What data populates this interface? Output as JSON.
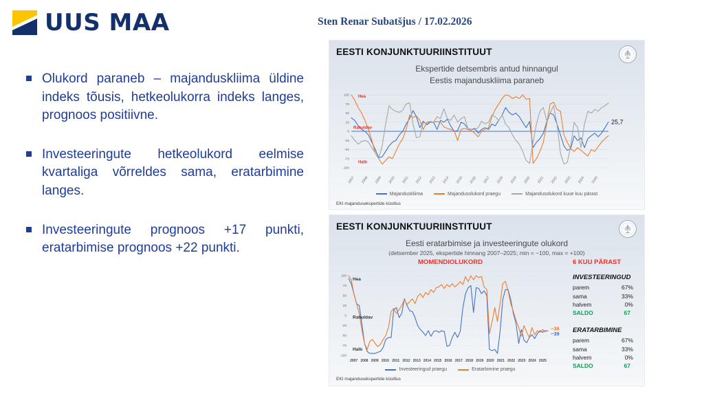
{
  "slide": {
    "logo_text": "UUS MAA",
    "presenter": "Sten Renar Subatšjus / 17.02.2026",
    "bullets": [
      "Olukord paraneb – majanduskliima üldine indeks tõusis, hetkeolukorra indeks langes, prognoos positiivne.",
      "Investeeringute hetkeolukord eelmise kvartaliga võrreldes sama, eratarbimine langes.",
      "Investeeringute prognoos +17 punkti, eratarbimise prognoos +22 punkti."
    ]
  },
  "colors": {
    "bullet_blue": "#1e3d99",
    "logo_navy": "#14306b",
    "logo_yellow": "#fdc500",
    "panel_bg_top": "#dbe2eb",
    "red_label": "#e8332a",
    "green_saldo": "#00a550",
    "line_blue": "#4472c4",
    "line_orange": "#ed7d31",
    "line_gray": "#a6a6a6"
  },
  "panels": [
    {
      "institute": "EESTI KONJUNKTUURIINSTITUUT",
      "title_lines": [
        "Ekspertide detsembris antud hinnangul",
        "Eestis majanduskliima paraneb"
      ],
      "footer": "EKI majandusekspertide küsitlus"
    },
    {
      "institute": "EESTI KONJUNKTUURIINSTITUUT",
      "title": "Eesti eratarbimise ja investeeringute olukord",
      "subtitle": "(detsember 2025, ekspertide hinnang 2007–2025; min = −100, max = +100)",
      "label_left": "MOMENDIOLUKORD",
      "label_right": "6 KUU PÄRAST",
      "stats": [
        {
          "name": "INVESTEERINGUD",
          "rows": [
            [
              "parem",
              "67%"
            ],
            [
              "sama",
              "33%"
            ],
            [
              "halvem",
              "0%"
            ]
          ],
          "saldo_label": "SALDO",
          "saldo_value": "67"
        },
        {
          "name": "ERATARBIMINE",
          "rows": [
            [
              "parem",
              "67%"
            ],
            [
              "sama",
              "33%"
            ],
            [
              "halvem",
              "0%"
            ]
          ],
          "saldo_label": "SALDO",
          "saldo_value": "67"
        }
      ],
      "footer": "EKI majandusekspertide küsitlus"
    }
  ],
  "chart_data": [
    {
      "type": "line",
      "title": "Ekspertide detsembris antud hinnangul Eestis majanduskliima paraneb",
      "x_years": [
        2007,
        2008,
        2009,
        2010,
        2011,
        2012,
        2013,
        2014,
        2015,
        2016,
        2017,
        2018,
        2019,
        2020,
        2021,
        2022,
        2023,
        2024,
        2025
      ],
      "points_per_year": 4,
      "ylim": [
        -100,
        100
      ],
      "ytick_step": 25,
      "x_rotate": true,
      "grid_dash": false,
      "zero_line_color": "#4472c4",
      "zone_label_color": "#e8332a",
      "zone_labels": [
        {
          "text": "Hea",
          "y": 92,
          "dx": 10,
          "size": 6
        },
        {
          "text": "Rahuldav",
          "y": 7,
          "dx": 3,
          "size": 6
        },
        {
          "text": "Halb",
          "y": -88,
          "dx": 10,
          "size": 6
        }
      ],
      "legend_position": "bottom",
      "series": [
        {
          "name": "Majanduskliima",
          "color": "#4472c4",
          "end_label": "25,7",
          "end_color": "#1a1a1a",
          "end_size": 9,
          "end_dy": 3,
          "values": [
            37,
            30,
            15,
            5,
            0,
            -10,
            -30,
            -50,
            -72,
            -70,
            -55,
            -40,
            -30,
            -25,
            -10,
            0,
            20,
            35,
            57,
            40,
            10,
            28,
            18,
            25,
            25,
            5,
            30,
            25,
            33,
            15,
            0,
            2,
            25,
            20,
            8,
            5,
            8,
            -5,
            5,
            10,
            5,
            20,
            15,
            30,
            45,
            65,
            52,
            45,
            50,
            40,
            25,
            10,
            27,
            -45,
            -30,
            -20,
            -5,
            25,
            50,
            45,
            20,
            -10,
            -40,
            -52,
            -48,
            -12,
            -25,
            -18,
            -45,
            -20,
            -12,
            -5,
            -15,
            -5,
            10,
            25.7
          ]
        },
        {
          "name": "Majandusolukord praegu",
          "color": "#ed7d31",
          "values": [
            100,
            85,
            65,
            50,
            30,
            5,
            -25,
            -60,
            -75,
            -90,
            -80,
            -70,
            -75,
            -55,
            -35,
            -20,
            5,
            45,
            38,
            42,
            30,
            5,
            25,
            27,
            25,
            27,
            25,
            12,
            8,
            5,
            2,
            -25,
            5,
            8,
            5,
            2,
            -5,
            -15,
            0,
            5,
            10,
            40,
            60,
            75,
            90,
            100,
            98,
            90,
            95,
            90,
            100,
            88,
            90,
            -88,
            -75,
            -55,
            -30,
            20,
            75,
            80,
            60,
            55,
            -10,
            -30,
            -48,
            -55,
            -45,
            -52,
            -60,
            -68,
            -50,
            -55,
            -42,
            -30,
            -20,
            -12
          ]
        },
        {
          "name": "Majandusolukord kuue kuu pärast",
          "color": "#a6a6a6",
          "values": [
            -12,
            -25,
            -35,
            -28,
            -25,
            -30,
            -45,
            -60,
            -75,
            -40,
            20,
            70,
            60,
            55,
            52,
            58,
            75,
            78,
            20,
            -18,
            -15,
            25,
            20,
            27,
            25,
            40,
            35,
            62,
            35,
            30,
            45,
            25,
            35,
            40,
            8,
            5,
            5,
            10,
            28,
            20,
            25,
            45,
            40,
            30,
            45,
            20,
            10,
            -10,
            -25,
            -35,
            -55,
            -80,
            -88,
            -30,
            20,
            55,
            65,
            30,
            50,
            70,
            20,
            -60,
            -90,
            -85,
            -40,
            25,
            10,
            -45,
            20,
            55,
            50,
            60,
            55,
            65,
            70,
            78
          ]
        }
      ]
    },
    {
      "type": "line",
      "title": "Eesti eratarbimise ja investeeringute olukord — MOMENDIOLUKORD",
      "x_years": [
        2007,
        2008,
        2009,
        2010,
        2011,
        2012,
        2013,
        2014,
        2015,
        2016,
        2017,
        2018,
        2019,
        2020,
        2021,
        2022,
        2023,
        2024,
        2025
      ],
      "points_per_year": 4,
      "ylim": [
        -100,
        100
      ],
      "ytick_step": 25,
      "x_rotate": false,
      "grid_dash": true,
      "zone_label_color": "#333333",
      "zone_labels": [
        {
          "text": "Hea",
          "y": 88,
          "dx": 6,
          "size": 6.5
        },
        {
          "text": "Rahuldav",
          "y": -8,
          "dx": 6,
          "size": 6.5
        },
        {
          "text": "Halb",
          "y": -88,
          "dx": 6,
          "size": 6.5
        }
      ],
      "legend_position": "bottom",
      "series": [
        {
          "name": "Investeeringud praegu",
          "color": "#4472c4",
          "end_label": "−39",
          "end_size": 7.5,
          "end_dy": 6.5,
          "end_weight": "bold",
          "values": [
            93,
            80,
            55,
            30,
            25,
            -20,
            -70,
            -90,
            -95,
            -95,
            -95,
            -92,
            -90,
            -80,
            -60,
            -55,
            -55,
            15,
            20,
            -5,
            5,
            42,
            25,
            12,
            10,
            -5,
            -25,
            -35,
            -42,
            -50,
            -38,
            -52,
            -40,
            -38,
            -42,
            -38,
            -40,
            -77,
            -75,
            -55,
            -42,
            -55,
            -40,
            20,
            55,
            70,
            75,
            8,
            70,
            68,
            55,
            62,
            50,
            -85,
            -88,
            -85,
            -95,
            -40,
            40,
            65,
            65,
            40,
            5,
            -20,
            -70,
            -35,
            -62,
            -68,
            -55,
            -48,
            -58,
            -45,
            -38,
            -42,
            -38,
            -39
          ]
        },
        {
          "name": "Eratarbimine praegu",
          "color": "#ed7d31",
          "end_label": "−38",
          "end_size": 7.5,
          "end_dy": -0.5,
          "end_weight": "bold",
          "values": [
            100,
            90,
            55,
            30,
            5,
            -35,
            -70,
            -85,
            -65,
            -60,
            -70,
            -78,
            -72,
            -60,
            -50,
            -30,
            10,
            18,
            5,
            15,
            25,
            40,
            28,
            35,
            42,
            30,
            48,
            55,
            45,
            58,
            52,
            65,
            58,
            70,
            72,
            78,
            68,
            78,
            72,
            80,
            72,
            78,
            85,
            78,
            98,
            85,
            100,
            90,
            100,
            95,
            98,
            72,
            65,
            -45,
            -15,
            20,
            -15,
            30,
            80,
            86,
            62,
            30,
            10,
            -12,
            -30,
            -52,
            -25,
            -42,
            -55,
            -30,
            -48,
            -38,
            -42,
            -35,
            -40,
            -38
          ]
        }
      ]
    }
  ]
}
